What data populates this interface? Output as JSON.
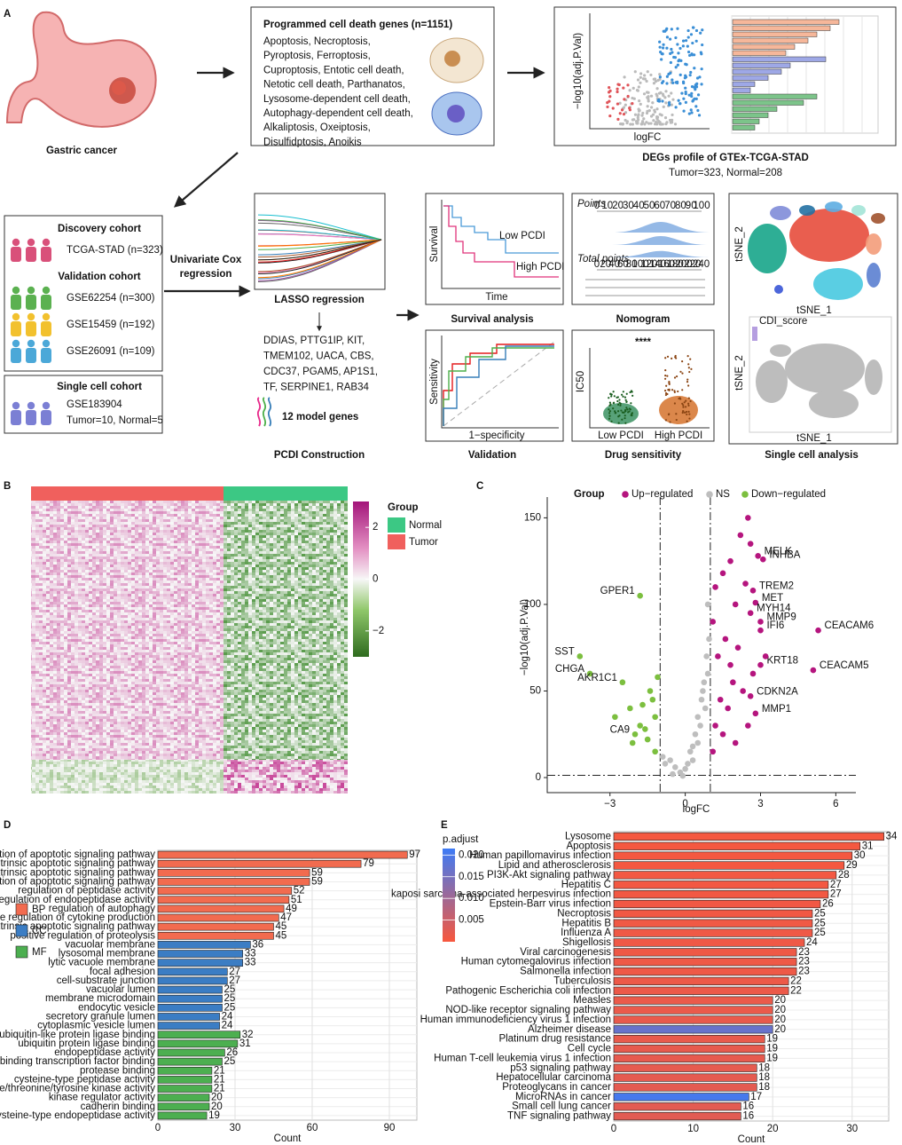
{
  "panel_a": {
    "label": "A",
    "gastric": "Gastric cancer",
    "pcd_title": "Programmed cell death genes (n=1151)",
    "pcd_lines": [
      "Apoptosis, Necroptosis,",
      "Pyroptosis, Ferroptosis,",
      "Cuproptosis, Entotic cell death,",
      "Netotic cell death, Parthanatos,",
      "Lysosome-dependent cell death,",
      "Autophagy-dependent cell death,",
      "Alkaliptosis, Oxeiptosis,",
      "Disulfidptosis, Anoikis"
    ],
    "degs_ylabel": "−log10(adj.P.Val)",
    "degs_xlabel": "logFC",
    "degs_title": "DEGs profile of GTEx-TCGA-STAD",
    "degs_subtitle": "Tumor=323, Normal=208",
    "cohorts": [
      {
        "title": "Discovery cohort",
        "items": [
          "TCGA-STAD (n=323)"
        ]
      },
      {
        "title": "Validation cohort",
        "items": [
          "GSE62254 (n=300)",
          "GSE15459 (n=192)",
          "GSE26091 (n=109)"
        ]
      },
      {
        "title": "Single cell cohort",
        "items": [
          "GSE183904",
          "Tumor=10, Normal=5"
        ]
      }
    ],
    "cox": [
      "Univariate Cox",
      "regression"
    ],
    "lasso": "LASSO regression",
    "genes": [
      "DDIAS, PTTG1IP, KIT,",
      "TMEM102, UACA, CBS,",
      "CDC37, PGAM5, AP1S1,",
      "TF, SERPINE1, RAB34"
    ],
    "model_genes": "12 model genes",
    "pcdi_construction": "PCDI Construction",
    "survival": {
      "ylabel": "Survival",
      "xlabel": "Time",
      "low": "Low PCDI",
      "high": "High PCDI",
      "title": "Survival analysis"
    },
    "nomogram": {
      "title": "Nomogram",
      "points_label": "Points",
      "points_ticks": [
        0,
        10,
        20,
        30,
        40,
        50,
        60,
        70,
        80,
        90,
        100
      ],
      "total_label": "Total points",
      "total_ticks": [
        0,
        20,
        40,
        60,
        80,
        100,
        120,
        140,
        160,
        180,
        200,
        220,
        240
      ]
    },
    "validation": {
      "ylabel": "Sensitivity",
      "xlabel": "1−specificity",
      "title": "Validation"
    },
    "drug": {
      "ylabel": "IC50",
      "significance": "****",
      "groups": [
        "Low PCDI",
        "High PCDI"
      ],
      "title": "Drug sensitivity"
    },
    "single_cell": {
      "xlabel": "tSNE_1",
      "ylabel": "tSNE_2",
      "legend": "CDI_score",
      "title": "Single cell analysis"
    }
  },
  "heatmap": {
    "label": "B",
    "legend_title": "Group",
    "groups": [
      {
        "name": "Normal",
        "color": "#3cc884"
      },
      {
        "name": "Tumor",
        "color": "#f0605d"
      }
    ],
    "clim": [
      -3,
      3
    ],
    "ticks": [
      2,
      0,
      {
        "value": -2,
        "label": "−2"
      }
    ]
  },
  "chart_data": [
    {
      "type": "scatter",
      "label": "C",
      "legend_title": "Group",
      "xlabel": "logFC",
      "ylabel": "−log10(adj.P.Val)",
      "xlim": [
        -5.5,
        6.8
      ],
      "ylim": [
        -8.7,
        162
      ],
      "xticks": [
        {
          "value": -3,
          "label": "−3"
        },
        0,
        3,
        6
      ],
      "yticks": [
        0,
        50,
        100,
        150
      ],
      "vlines": [
        -1,
        1
      ],
      "hline": 1.3,
      "series": [
        {
          "name": "Up−regulated",
          "color": "#b5157e",
          "x": [
            2.9,
            3.1,
            2.7,
            2.8,
            2.6,
            3.0,
            3.0,
            5.3,
            3.0,
            5.1,
            2.6,
            2.8,
            2.5,
            2.2,
            1.8,
            1.5,
            1.2,
            1.1,
            2.0,
            2.4,
            1.6,
            1.3,
            2.1,
            2.7,
            1.9,
            1.4,
            2.3,
            1.7,
            1.2,
            2.5,
            2.0,
            1.5,
            1.1,
            3.2,
            2.6,
            1.8
          ],
          "values": [
            128,
            126,
            108,
            101,
            95,
            90,
            85,
            85,
            65,
            62,
            47,
            37,
            150,
            140,
            125,
            118,
            110,
            90,
            100,
            112,
            80,
            70,
            75,
            60,
            55,
            45,
            50,
            40,
            30,
            30,
            20,
            25,
            15,
            70,
            135,
            65
          ],
          "labels": [
            "MELK",
            "INHBA",
            "TREM2",
            "MET",
            "MYH14",
            "MMP9",
            "IFI6",
            "CEACAM6",
            "KRT18",
            "CEACAM5",
            "CDKN2A",
            "MMP1",
            null,
            null,
            null,
            null,
            null,
            null,
            null,
            null,
            null,
            null,
            null,
            null,
            null,
            null,
            null,
            null,
            null,
            null,
            null,
            null,
            null,
            null,
            null,
            null
          ]
        },
        {
          "name": "NS",
          "color": "#bebebe",
          "x": [
            -0.5,
            0,
            0.3,
            0.5,
            -0.2,
            0.8,
            0.9,
            -0.8,
            0.6,
            0.2,
            -0.4,
            0.7,
            0.95,
            -0.9,
            0.4,
            0.1,
            -0.1,
            0.85,
            0.75,
            0.65,
            -0.6,
            0.9,
            0.5,
            0.3
          ],
          "values": [
            2,
            5,
            10,
            20,
            3,
            40,
            60,
            8,
            30,
            15,
            6,
            50,
            80,
            12,
            25,
            8,
            1,
            70,
            55,
            45,
            10,
            100,
            35,
            18
          ],
          "labels": [
            null,
            null,
            null,
            null,
            null,
            null,
            null,
            null,
            null,
            null,
            null,
            null,
            null,
            null,
            null,
            null,
            null,
            null,
            null,
            null,
            null,
            null,
            null,
            null
          ]
        },
        {
          "name": "Down−regulated",
          "color": "#7cbf3f",
          "x": [
            -1.8,
            -4.2,
            -3.8,
            -2.5,
            -2.0,
            -1.2,
            -1.5,
            -2.2,
            -1.1,
            -1.8,
            -1.3,
            -2.8,
            -1.6,
            -1.4,
            -2.1,
            -1.2,
            -1.7
          ],
          "values": [
            105,
            70,
            60,
            55,
            25,
            35,
            22,
            40,
            58,
            30,
            45,
            35,
            28,
            50,
            20,
            15,
            42
          ],
          "labels": [
            "GPER1",
            "SST",
            "CHGA",
            "AKR1C1",
            "CA9",
            null,
            null,
            null,
            null,
            null,
            null,
            null,
            null,
            null,
            null,
            null,
            null
          ]
        }
      ]
    },
    {
      "type": "bar",
      "orientation": "horizontal",
      "label": "D",
      "xlabel": "Count",
      "xlim": [
        0,
        100.7
      ],
      "xticks": [
        0,
        30,
        60,
        90
      ],
      "grid": true,
      "categories": [
        "regulation of apoptotic signaling pathway",
        "intrinsic apoptotic signaling pathway",
        "extrinsic apoptotic signaling pathway",
        "negative regulation of apoptotic signaling pathway",
        "regulation of peptidase activity",
        "regulation of endopeptidase activity",
        "regulation of autophagy",
        "positive regulation of cytokine production",
        "regulation of extrinsic apoptotic signaling pathway",
        "positive regulation of proteolysis",
        "vacuolar membrane",
        "lysosomal membrane",
        "lytic vacuole membrane",
        "focal adhesion",
        "cell-substrate junction",
        "vacuolar lumen",
        "membrane microdomain",
        "endocytic vesicle",
        "secretory granule lumen",
        "cytoplasmic vesicle lumen",
        "ubiquitin-like protein ligase binding",
        "ubiquitin protein ligase binding",
        "endopeptidase activity",
        "DNA-binding transcription factor binding",
        "protease binding",
        "cysteine-type peptidase activity",
        "protein serine/threonine/tyrosine kinase activity",
        "kinase regulator activity",
        "cadherin binding",
        "cysteine-type endopeptidase activity"
      ],
      "series": [
        {
          "name": "BP",
          "color": "#f26b4f",
          "values": [
            97,
            79,
            59,
            59,
            52,
            51,
            49,
            47,
            45,
            45,
            null,
            null,
            null,
            null,
            null,
            null,
            null,
            null,
            null,
            null,
            null,
            null,
            null,
            null,
            null,
            null,
            null,
            null,
            null,
            null
          ]
        },
        {
          "name": "CC",
          "color": "#3b7dc4",
          "values": [
            null,
            null,
            null,
            null,
            null,
            null,
            null,
            null,
            null,
            null,
            36,
            33,
            33,
            27,
            27,
            25,
            25,
            25,
            24,
            24,
            null,
            null,
            null,
            null,
            null,
            null,
            null,
            null,
            null,
            null
          ]
        },
        {
          "name": "MF",
          "color": "#4caf50",
          "values": [
            null,
            null,
            null,
            null,
            null,
            null,
            null,
            null,
            null,
            null,
            null,
            null,
            null,
            null,
            null,
            null,
            null,
            null,
            null,
            null,
            32,
            31,
            26,
            25,
            21,
            21,
            21,
            20,
            20,
            19
          ]
        }
      ]
    },
    {
      "type": "bar",
      "orientation": "horizontal",
      "label": "E",
      "xlabel": "Count",
      "xlim": [
        0,
        34.6
      ],
      "xticks": [
        0,
        10,
        20,
        30
      ],
      "grid": true,
      "categories": [
        "Lysosome",
        "Apoptosis",
        "Human papillomavirus infection",
        "Lipid and atherosclerosis",
        "PI3K-Akt signaling pathway",
        "Hepatitis C",
        "kaposi sarcoma-associated herpesvirus infection",
        "Epstein-Barr virus infection",
        "Necroptosis",
        "Hepatitis B",
        "Influenza A",
        "Shigellosis",
        "Viral carcinogenesis",
        "Human cytomegalovirus infection",
        "Salmonella infection",
        "Tuberculosis",
        "Pathogenic Escherichia coli infection",
        "Measles",
        "NOD-like receptor signaling pathway",
        "Human immunodeficiency virus 1 infection",
        "Alzheimer disease",
        "Platinum drug resistance",
        "Cell cycle",
        "Human T-cell leukemia virus 1 infection",
        "p53 signaling pathway",
        "Hepatocellular carcinoma",
        "Proteoglycans in cancer",
        "MicroRNAs in cancer",
        "Small cell lung cancer",
        "TNF signaling pathway"
      ],
      "values": [
        34,
        31,
        30,
        29,
        28,
        27,
        27,
        26,
        25,
        25,
        25,
        24,
        23,
        23,
        23,
        22,
        22,
        20,
        20,
        20,
        20,
        19,
        19,
        19,
        18,
        18,
        18,
        17,
        16,
        16
      ],
      "color_title": "p.adjust",
      "color_values": [
        0.0003,
        0.0004,
        0.0005,
        0.0005,
        0.0006,
        0.0006,
        0.0007,
        0.0008,
        0.0008,
        0.0009,
        0.001,
        0.001,
        0.0011,
        0.0012,
        0.0012,
        0.0013,
        0.0014,
        0.0015,
        0.0016,
        0.0017,
        0.0165,
        0.0018,
        0.0019,
        0.002,
        0.0021,
        0.0022,
        0.0023,
        0.0205,
        0.0024,
        0.0025
      ],
      "colors": {
        "low": "#f8573d",
        "high": "#3d7bf6"
      },
      "clim": [
        0,
        0.0215
      ],
      "cticks": [
        0.005,
        {
          "value": 0.01,
          "label": "0.010"
        },
        0.015,
        {
          "value": 0.02,
          "label": "0.020"
        }
      ]
    }
  ]
}
